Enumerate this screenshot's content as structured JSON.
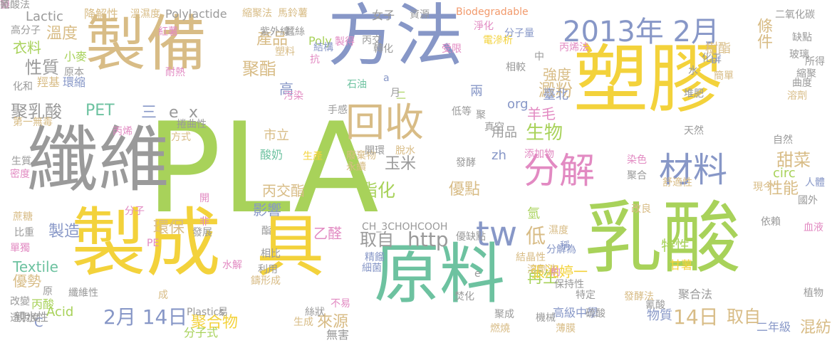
{
  "colors": {
    "background": "#ffffff",
    "gray": "#9a9a9a",
    "tan": "#d8bc86",
    "blue": "#8797c7",
    "green": "#a8d25a",
    "yellow": "#f3d23b",
    "teal": "#6dc2a0",
    "pink": "#e28ac2",
    "orange": "#f29a6c"
  },
  "words": [
    {
      "t": "PLA",
      "c": "#a8d25a"
    },
    {
      "t": "塑膠",
      "c": "#f3d23b"
    },
    {
      "t": "方法",
      "c": "#8797c7"
    },
    {
      "t": "製備",
      "c": "#d8bc86"
    },
    {
      "t": "纖維",
      "c": "#9a9a9a"
    },
    {
      "t": "乳酸",
      "c": "#a8d25a"
    },
    {
      "t": "製成",
      "c": "#f3d23b"
    },
    {
      "t": "具",
      "c": "#f3d23b"
    },
    {
      "t": "原料",
      "c": "#6dc2a0"
    },
    {
      "t": "2013年 2月",
      "c": "#8797c7"
    },
    {
      "t": "回收",
      "c": "#d8bc86"
    },
    {
      "t": "分解",
      "c": "#e28ac2"
    },
    {
      "t": "材料",
      "c": "#8797c7"
    },
    {
      "t": "tw",
      "c": "#8797c7"
    },
    {
      "t": "http",
      "c": "#9a9a9a"
    },
    {
      "t": "條件",
      "c": "#d8bc86"
    },
    {
      "t": "產品",
      "c": "#d8bc86"
    },
    {
      "t": "聚酯",
      "c": "#d8bc86"
    },
    {
      "t": "溫度",
      "c": "#d8bc86"
    },
    {
      "t": "衣料",
      "c": "#a8d25a"
    },
    {
      "t": "性質",
      "c": "#9a9a9a"
    },
    {
      "t": "聚乳酸",
      "c": "#9a9a9a"
    },
    {
      "t": "PET",
      "c": "#6dc2a0"
    },
    {
      "t": "三",
      "c": "#8797c7"
    },
    {
      "t": "e",
      "c": "#9a9a9a"
    },
    {
      "t": "x",
      "c": "#9a9a9a"
    },
    {
      "t": "生物",
      "c": "#a8d25a"
    },
    {
      "t": "用品",
      "c": "#9a9a9a"
    },
    {
      "t": "玉米",
      "c": "#9a9a9a"
    },
    {
      "t": "丙交酯",
      "c": "#d8bc86"
    },
    {
      "t": "酯化",
      "c": "#a8d25a"
    },
    {
      "t": "影響",
      "c": "#8797c7"
    },
    {
      "t": "優點",
      "c": "#d8bc86"
    },
    {
      "t": "甜菜",
      "c": "#d8bc86"
    },
    {
      "t": "性能",
      "c": "#d8bc86"
    },
    {
      "t": "circ",
      "c": "#a8d25a"
    },
    {
      "t": "製造",
      "c": "#8797c7"
    },
    {
      "t": "環保",
      "c": "#d8bc86"
    },
    {
      "t": "取自",
      "c": "#9a9a9a"
    },
    {
      "t": "乙醛",
      "c": "#e28ac2"
    },
    {
      "t": "Textile",
      "c": "#6dc2a0"
    },
    {
      "t": "優勢",
      "c": "#d8bc86"
    },
    {
      "t": "Acid",
      "c": "#a8d25a"
    },
    {
      "t": "2月 14日",
      "c": "#8797c7"
    },
    {
      "t": "聚合物",
      "c": "#f3d23b"
    },
    {
      "t": "來源",
      "c": "#d8bc86"
    },
    {
      "t": "14日",
      "c": "#d8bc86"
    },
    {
      "t": "取自",
      "c": "#d8bc86"
    },
    {
      "t": "混紡",
      "c": "#d8bc86"
    },
    {
      "t": "特性",
      "c": "#a8d25a"
    },
    {
      "t": "低",
      "c": "#d8bc86"
    },
    {
      "t": "再生",
      "c": "#a8d25a"
    },
    {
      "t": "強度",
      "c": "#d8bc86"
    },
    {
      "t": "澱粉",
      "c": "#d8bc86"
    },
    {
      "t": "臺北",
      "c": "#8797c7"
    },
    {
      "t": "羊毛",
      "c": "#e28ac2"
    },
    {
      "t": "org",
      "c": "#8797c7"
    },
    {
      "t": "高",
      "c": "#8797c7"
    },
    {
      "t": "兩",
      "c": "#8797c7"
    },
    {
      "t": "zh",
      "c": "#8797c7"
    },
    {
      "t": "氫",
      "c": "#a8d25a"
    },
    {
      "t": "Lactic",
      "c": "#9a9a9a"
    },
    {
      "t": "降解性",
      "c": "#d8bc86"
    },
    {
      "t": "Polylactide",
      "c": "#9a9a9a"
    },
    {
      "t": "Biodegradable",
      "c": "#f29a6c"
    },
    {
      "t": "二氧化碳",
      "c": "#9a9a9a"
    },
    {
      "t": "張湘婷一",
      "c": "#f3d23b"
    },
    {
      "t": "高級中學",
      "c": "#8797c7"
    },
    {
      "t": "二年級",
      "c": "#8797c7"
    },
    {
      "t": "物質",
      "c": "#8797c7"
    },
    {
      "t": "無害",
      "c": "#9a9a9a"
    },
    {
      "t": "分子式",
      "c": "#a8d25a"
    },
    {
      "t": "生成",
      "c": "#d8bc86"
    },
    {
      "t": "丙酸",
      "c": "#a8d25a"
    },
    {
      "t": "C",
      "c": "#8797c7"
    },
    {
      "t": "溫濕度",
      "c": "#d8bc86"
    },
    {
      "t": "縮聚法",
      "c": "#d8bc86"
    },
    {
      "t": "馬鈴薯",
      "c": "#d8bc86"
    },
    {
      "t": "女子",
      "c": "#9a9a9a"
    },
    {
      "t": "資源",
      "c": "#9a9a9a"
    },
    {
      "t": "Poly",
      "c": "#a8d25a"
    },
    {
      "t": "小麥",
      "c": "#a8d25a"
    },
    {
      "t": "羥基",
      "c": "#d8bc86"
    },
    {
      "t": "環縮",
      "c": "#8797c7"
    },
    {
      "t": "化和",
      "c": "#9a9a9a"
    },
    {
      "t": "原本",
      "c": "#9a9a9a"
    },
    {
      "t": "耐熱",
      "c": "#e28ac2"
    },
    {
      "t": "第一無毒",
      "c": "#d8bc86"
    },
    {
      "t": "丙烯",
      "c": "#e28ac2"
    },
    {
      "t": "捲曲性",
      "c": "#9a9a9a"
    },
    {
      "t": "方式",
      "c": "#d8bc86"
    },
    {
      "t": "市立",
      "c": "#d8bc86"
    },
    {
      "t": "酸奶",
      "c": "#6dc2a0"
    },
    {
      "t": "廢棄物",
      "c": "#d8bc86"
    },
    {
      "t": "開環",
      "c": "#9a9a9a"
    },
    {
      "t": "脫水",
      "c": "#d8bc86"
    },
    {
      "t": "永續",
      "c": "#d8bc86"
    },
    {
      "t": "添加物",
      "c": "#e28ac2"
    },
    {
      "t": "發酵",
      "c": "#9a9a9a"
    },
    {
      "t": "CH_3CHOHCOOH",
      "c": "#9a9a9a"
    },
    {
      "t": "優缺點",
      "c": "#9a9a9a"
    },
    {
      "t": "結晶性",
      "c": "#d8bc86"
    },
    {
      "t": "分解為",
      "c": "#8797c7"
    },
    {
      "t": "依賴",
      "c": "#9a9a9a"
    },
    {
      "t": "聚合法",
      "c": "#9a9a9a"
    },
    {
      "t": "甘薯",
      "c": "#f3d23b"
    },
    {
      "t": "發酵法",
      "c": "#d8bc86"
    },
    {
      "t": "氰酸",
      "c": "#9a9a9a"
    },
    {
      "t": "植物",
      "c": "#9a9a9a"
    },
    {
      "t": "血液",
      "c": "#e28ac2"
    },
    {
      "t": "國外",
      "c": "#9a9a9a"
    },
    {
      "t": "現今",
      "c": "#d8bc86"
    },
    {
      "t": "改良",
      "c": "#d8bc86"
    },
    {
      "t": "舒適性",
      "c": "#d8bc86"
    },
    {
      "t": "染色",
      "c": "#e28ac2"
    },
    {
      "t": "人體",
      "c": "#8797c7"
    },
    {
      "t": "自然",
      "c": "#9a9a9a"
    },
    {
      "t": "天然",
      "c": "#9a9a9a"
    },
    {
      "t": "聚合",
      "c": "#9a9a9a"
    },
    {
      "t": "特定",
      "c": "#9a9a9a"
    },
    {
      "t": "焚化",
      "c": "#9a9a9a"
    },
    {
      "t": "燃燒",
      "c": "#d8bc86"
    },
    {
      "t": "機械",
      "c": "#9a9a9a"
    },
    {
      "t": "薄膜",
      "c": "#d8bc86"
    },
    {
      "t": "硫酸",
      "c": "#9a9a9a"
    },
    {
      "t": "聚成",
      "c": "#9a9a9a"
    },
    {
      "t": "保持性",
      "c": "#9a9a9a"
    },
    {
      "t": "溶劑法",
      "c": "#d8bc86"
    },
    {
      "t": "水解",
      "c": "#e28ac2"
    },
    {
      "t": "相比",
      "c": "#9a9a9a"
    },
    {
      "t": "鑄形成",
      "c": "#d8bc86"
    },
    {
      "t": "利用",
      "c": "#9a9a9a"
    },
    {
      "t": "精餾",
      "c": "#8797c7"
    },
    {
      "t": "細菌",
      "c": "#8797c7"
    },
    {
      "t": "絲狀",
      "c": "#9a9a9a"
    },
    {
      "t": "不易",
      "c": "#e28ac2"
    },
    {
      "t": "Plastics",
      "c": "#9a9a9a"
    },
    {
      "t": "易",
      "c": "#9a9a9a"
    },
    {
      "t": "原",
      "c": "#9a9a9a"
    },
    {
      "t": "改變",
      "c": "#9a9a9a"
    },
    {
      "t": "透明度",
      "c": "#9a9a9a"
    },
    {
      "t": "親水性",
      "c": "#9a9a9a"
    },
    {
      "t": "纖維性",
      "c": "#9a9a9a"
    },
    {
      "t": "成",
      "c": "#d8bc86"
    },
    {
      "t": "酯",
      "c": "#9a9a9a"
    },
    {
      "t": "PE",
      "c": "#e28ac2"
    },
    {
      "t": "發展",
      "c": "#9a9a9a"
    },
    {
      "t": "非",
      "c": "#e28ac2"
    },
    {
      "t": "分子",
      "c": "#e28ac2"
    },
    {
      "t": "比重",
      "c": "#9a9a9a"
    },
    {
      "t": "單獨",
      "c": "#e28ac2"
    },
    {
      "t": "蔗糖",
      "c": "#d8bc86"
    },
    {
      "t": "密度",
      "c": "#e28ac2"
    },
    {
      "t": "生質",
      "c": "#9a9a9a"
    },
    {
      "t": "開",
      "c": "#e28ac2"
    },
    {
      "t": "生產",
      "c": "#f3d23b"
    },
    {
      "t": "手感",
      "c": "#9a9a9a"
    },
    {
      "t": "污染",
      "c": "#e28ac2"
    },
    {
      "t": "二",
      "c": "#a8d25a"
    },
    {
      "t": "真空",
      "c": "#9a9a9a"
    },
    {
      "t": "低等",
      "c": "#9a9a9a"
    },
    {
      "t": "石油",
      "c": "#6dc2a0"
    },
    {
      "t": "抗",
      "c": "#e28ac2"
    },
    {
      "t": "結構",
      "c": "#8797c7"
    },
    {
      "t": "塑料",
      "c": "#d8bc86"
    },
    {
      "t": "紫外線",
      "c": "#9a9a9a"
    },
    {
      "t": "蠶絲",
      "c": "#9a9a9a"
    },
    {
      "t": "紅薯",
      "c": "#e28ac2"
    },
    {
      "t": "高分子",
      "c": "#9a9a9a"
    },
    {
      "t": "製得",
      "c": "#e28ac2"
    },
    {
      "t": "丙交",
      "c": "#9a9a9a"
    },
    {
      "t": "受限",
      "c": "#e28ac2"
    },
    {
      "t": "電滲析",
      "c": "#f3d23b"
    },
    {
      "t": "淨化",
      "c": "#e28ac2"
    },
    {
      "t": "分子量",
      "c": "#8797c7"
    },
    {
      "t": "相較",
      "c": "#9a9a9a"
    },
    {
      "t": "中",
      "c": "#9a9a9a"
    },
    {
      "t": "丙烯法",
      "c": "#e28ac2"
    },
    {
      "t": "樹酯",
      "c": "#d8bc86"
    },
    {
      "t": "化工",
      "c": "#9a9a9a"
    },
    {
      "t": "bf",
      "c": "#8797c7"
    },
    {
      "t": "水",
      "c": "#9a9a9a"
    },
    {
      "t": "堆肥",
      "c": "#9a9a9a"
    },
    {
      "t": "簡單",
      "c": "#d8bc86"
    },
    {
      "t": "曲度",
      "c": "#9a9a9a"
    },
    {
      "t": "溶劑",
      "c": "#d8bc86"
    },
    {
      "t": "玻璃",
      "c": "#9a9a9a"
    },
    {
      "t": "縮聚",
      "c": "#9a9a9a"
    },
    {
      "t": "缺點",
      "c": "#9a9a9a"
    },
    {
      "t": "所得",
      "c": "#9a9a9a"
    },
    {
      "t": "聚",
      "c": "#9a9a9a"
    },
    {
      "t": "a",
      "c": "#8797c7"
    },
    {
      "t": "月",
      "c": "#9a9a9a"
    },
    {
      "t": "濕度",
      "c": "#d8bc86"
    },
    {
      "t": "稱",
      "c": "#8797c7"
    },
    {
      "t": "約",
      "c": "#e28ac2"
    },
    {
      "t": "轉化",
      "c": "#9a9a9a"
    },
    {
      "t": "e",
      "c": "#9a9a9a"
    },
    {
      "t": "捲",
      "c": "#9a9a9a"
    },
    {
      "t": "製",
      "c": "#e28ac2"
    },
    {
      "t": "氰酸法",
      "c": "#9a9a9a"
    }
  ]
}
